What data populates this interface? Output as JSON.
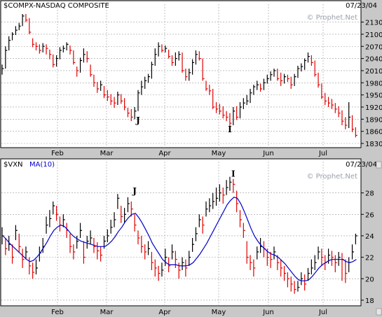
{
  "chart_data": [
    {
      "type": "ohlc",
      "title": "$COMPX-NASDAQ COMPOSITE",
      "date": "07/23/04",
      "watermark": "© Prophet.Net",
      "ylim": [
        1830,
        2150
      ],
      "yticks": [
        "2130",
        "2100",
        "2070",
        "2040",
        "2010",
        "1980",
        "1950",
        "1920",
        "1890",
        "1860",
        "1830"
      ],
      "month_labels": [
        "Feb",
        "Mar",
        "Apr",
        "May",
        "Jun",
        "Jul"
      ],
      "annotations": [
        {
          "label": "J",
          "x": 40,
          "y": 1880
        },
        {
          "label": "I",
          "x": 67,
          "y": 1858
        }
      ],
      "closes": [
        2015,
        2060,
        2085,
        2100,
        2110,
        2120,
        2145,
        2135,
        2105,
        2075,
        2070,
        2060,
        2070,
        2065,
        2050,
        2025,
        2040,
        2060,
        2065,
        2075,
        2060,
        2030,
        2010,
        2035,
        2050,
        2040,
        2000,
        1980,
        1965,
        1975,
        1950,
        1945,
        1935,
        1930,
        1950,
        1935,
        1920,
        1905,
        1895,
        1910,
        1955,
        1970,
        1985,
        1995,
        2025,
        2050,
        2070,
        2060,
        2065,
        2045,
        2030,
        2040,
        2050,
        2010,
        1995,
        2005,
        2030,
        2050,
        2040,
        1990,
        1965,
        1960,
        1920,
        1915,
        1910,
        1900,
        1895,
        1880,
        1910,
        1895,
        1920,
        1930,
        1935,
        1955,
        1970,
        1975,
        1965,
        1980,
        1990,
        2000,
        2010,
        1990,
        1985,
        1995,
        1990,
        1975,
        1995,
        2015,
        2020,
        2035,
        2045,
        2030,
        2000,
        1975,
        1945,
        1935,
        1930,
        1925,
        1915,
        1905,
        1885,
        1875,
        1895,
        1865,
        1850
      ],
      "highs": [
        2025,
        2070,
        2095,
        2105,
        2120,
        2128,
        2150,
        2150,
        2140,
        2090,
        2080,
        2075,
        2078,
        2075,
        2062,
        2050,
        2048,
        2068,
        2072,
        2080,
        2072,
        2060,
        2020,
        2042,
        2065,
        2058,
        2025,
        2000,
        1982,
        1985,
        1972,
        1962,
        1952,
        1945,
        1958,
        1952,
        1942,
        1918,
        1915,
        1920,
        1962,
        1985,
        1995,
        2002,
        2032,
        2065,
        2080,
        2075,
        2072,
        2062,
        2048,
        2055,
        2058,
        2055,
        2015,
        2015,
        2038,
        2060,
        2058,
        2040,
        1985,
        1975,
        1965,
        1932,
        1928,
        1922,
        1910,
        1905,
        1920,
        1922,
        1932,
        1942,
        1950,
        1965,
        1975,
        1985,
        1978,
        1990,
        2000,
        2008,
        2015,
        2015,
        2005,
        2002,
        2000,
        1995,
        2002,
        2022,
        2028,
        2040,
        2055,
        2048,
        2035,
        2005,
        1978,
        1955,
        1945,
        1940,
        1930,
        1922,
        1912,
        1895,
        1932,
        1900,
        1870
      ],
      "lows": [
        2000,
        2015,
        2060,
        2085,
        2098,
        2110,
        2120,
        2130,
        2100,
        2068,
        2060,
        2052,
        2055,
        2050,
        2038,
        2018,
        2020,
        2038,
        2055,
        2060,
        2050,
        2025,
        1995,
        2005,
        2030,
        2030,
        1995,
        1970,
        1955,
        1960,
        1942,
        1935,
        1925,
        1918,
        1925,
        1928,
        1912,
        1895,
        1885,
        1890,
        1910,
        1950,
        1965,
        1980,
        1990,
        2022,
        2045,
        2055,
        2055,
        2040,
        2022,
        2022,
        2035,
        2005,
        1985,
        1985,
        2000,
        2025,
        2035,
        1985,
        1960,
        1950,
        1915,
        1905,
        1902,
        1892,
        1885,
        1865,
        1875,
        1888,
        1892,
        1915,
        1925,
        1930,
        1950,
        1962,
        1958,
        1962,
        1978,
        1985,
        1995,
        1985,
        1972,
        1978,
        1982,
        1965,
        1972,
        1992,
        2008,
        2012,
        2030,
        2022,
        1995,
        1968,
        1940,
        1925,
        1920,
        1915,
        1905,
        1895,
        1875,
        1865,
        1868,
        1858,
        1845
      ]
    },
    {
      "type": "ohlc",
      "title": "$VXN",
      "indicator": "MA(10)",
      "indicator_color": "#0000cc",
      "date": "07/23/04",
      "watermark": "© Prophet.Net",
      "ylim": [
        17.8,
        30
      ],
      "yticks": [
        "28",
        "26",
        "24",
        "22",
        "20",
        "18"
      ],
      "month_labels": [
        "Feb",
        "Mar",
        "Apr",
        "May",
        "Jun",
        "Jul"
      ],
      "annotations": [
        {
          "label": "J",
          "x": 39,
          "y": 27.9
        },
        {
          "label": "I",
          "x": 68,
          "y": 29.5
        }
      ],
      "closes": [
        24.0,
        22.8,
        23.2,
        22.0,
        24.5,
        23.0,
        21.8,
        22.5,
        21.2,
        20.6,
        21.0,
        22.4,
        23.0,
        25.0,
        25.6,
        26.8,
        26.0,
        25.0,
        25.5,
        24.5,
        23.0,
        22.5,
        23.5,
        24.5,
        22.0,
        23.5,
        23.8,
        23.0,
        22.6,
        22.2,
        23.5,
        24.0,
        24.8,
        25.5,
        27.5,
        25.8,
        26.0,
        27.0,
        26.5,
        25.0,
        23.8,
        23.0,
        22.5,
        22.8,
        21.5,
        21.0,
        20.5,
        20.8,
        22.0,
        21.2,
        22.5,
        21.8,
        20.8,
        21.5,
        21.0,
        22.0,
        23.2,
        24.2,
        25.5,
        25.0,
        26.5,
        26.8,
        27.2,
        27.5,
        28.0,
        27.8,
        28.5,
        29.0,
        28.8,
        27.0,
        25.5,
        24.5,
        22.0,
        21.5,
        21.0,
        22.5,
        23.0,
        22.8,
        22.0,
        21.8,
        22.5,
        21.5,
        21.0,
        20.5,
        20.0,
        19.5,
        19.0,
        19.2,
        20.0,
        19.5,
        20.5,
        21.0,
        21.5,
        22.5,
        22.0,
        21.5,
        22.2,
        22.0,
        21.5,
        22.0,
        21.8,
        20.5,
        21.5,
        22.5,
        24.0
      ],
      "highs": [
        24.8,
        23.8,
        24.0,
        23.2,
        25.0,
        24.2,
        22.8,
        23.0,
        22.0,
        21.5,
        21.8,
        23.0,
        23.8,
        25.8,
        26.4,
        27.2,
        26.8,
        25.8,
        26.0,
        25.2,
        24.2,
        23.2,
        24.0,
        25.2,
        23.5,
        24.0,
        24.5,
        23.8,
        23.4,
        23.0,
        24.0,
        24.6,
        25.5,
        26.2,
        27.9,
        26.8,
        26.6,
        27.6,
        27.2,
        26.0,
        24.5,
        24.0,
        23.2,
        23.5,
        22.5,
        21.8,
        21.2,
        21.5,
        22.8,
        22.0,
        23.2,
        22.6,
        21.5,
        22.0,
        21.8,
        22.6,
        23.8,
        24.8,
        26.0,
        25.8,
        27.2,
        27.5,
        28.0,
        28.5,
        28.8,
        28.5,
        29.2,
        29.5,
        29.3,
        28.2,
        26.4,
        25.2,
        23.5,
        22.2,
        21.8,
        23.0,
        23.8,
        23.5,
        22.8,
        22.5,
        23.0,
        22.2,
        21.8,
        21.2,
        20.6,
        20.2,
        19.8,
        19.8,
        20.6,
        20.4,
        21.0,
        21.8,
        22.2,
        23.0,
        22.8,
        22.2,
        22.8,
        22.6,
        22.2,
        22.5,
        22.4,
        21.8,
        22.0,
        23.2,
        24.2
      ],
      "lows": [
        23.2,
        22.2,
        22.6,
        21.4,
        23.6,
        22.4,
        21.0,
        21.8,
        20.4,
        20.0,
        20.4,
        21.6,
        22.4,
        24.2,
        24.8,
        26.0,
        25.4,
        24.4,
        24.8,
        23.8,
        22.4,
        21.8,
        22.8,
        23.8,
        21.4,
        22.8,
        23.2,
        22.4,
        21.8,
        21.6,
        22.8,
        23.4,
        24.2,
        24.8,
        26.5,
        25.2,
        25.2,
        26.2,
        25.8,
        24.4,
        23.2,
        22.4,
        21.8,
        22.2,
        20.8,
        20.2,
        19.8,
        20.2,
        21.2,
        20.6,
        21.8,
        21.0,
        20.0,
        20.8,
        20.2,
        21.2,
        22.5,
        23.5,
        24.8,
        24.2,
        25.8,
        26.2,
        26.5,
        26.8,
        27.2,
        27.0,
        27.8,
        28.2,
        28.0,
        26.2,
        24.8,
        23.8,
        21.4,
        20.8,
        20.2,
        21.8,
        22.4,
        22.0,
        21.2,
        21.0,
        21.8,
        20.8,
        20.2,
        19.8,
        19.2,
        18.8,
        18.6,
        18.8,
        19.4,
        18.9,
        19.8,
        20.4,
        20.8,
        21.8,
        21.2,
        20.8,
        21.4,
        21.2,
        20.6,
        21.2,
        19.8,
        19.6,
        20.6,
        21.8,
        23.2
      ],
      "ma10": [
        24.0,
        23.7,
        23.3,
        23.0,
        22.7,
        22.4,
        22.1,
        21.8,
        21.6,
        21.7,
        22.0,
        22.4,
        22.9,
        23.4,
        24.0,
        24.5,
        24.8,
        25.0,
        24.9,
        24.6,
        24.2,
        23.9,
        23.7,
        23.5,
        23.4,
        23.3,
        23.2,
        23.1,
        23.0,
        23.0,
        23.0,
        23.2,
        23.5,
        23.9,
        24.4,
        24.8,
        25.3,
        25.7,
        26.0,
        26.1,
        25.7,
        25.2,
        24.6,
        24.0,
        23.3,
        22.8,
        22.3,
        21.8,
        21.5,
        21.3,
        21.3,
        21.3,
        21.2,
        21.2,
        21.2,
        21.3,
        21.5,
        21.9,
        22.3,
        22.8,
        23.3,
        23.9,
        24.5,
        25.1,
        25.7,
        26.3,
        26.9,
        27.3,
        27.6,
        27.5,
        27.0,
        26.3,
        25.5,
        24.7,
        24.0,
        23.5,
        23.1,
        22.8,
        22.5,
        22.3,
        22.2,
        22.0,
        21.7,
        21.4,
        21.0,
        20.6,
        20.2,
        19.9,
        19.8,
        19.8,
        19.9,
        20.2,
        20.6,
        21.0,
        21.3,
        21.5,
        21.7,
        21.8,
        21.8,
        21.8,
        21.8,
        21.6,
        21.5,
        21.6,
        21.8
      ]
    }
  ]
}
